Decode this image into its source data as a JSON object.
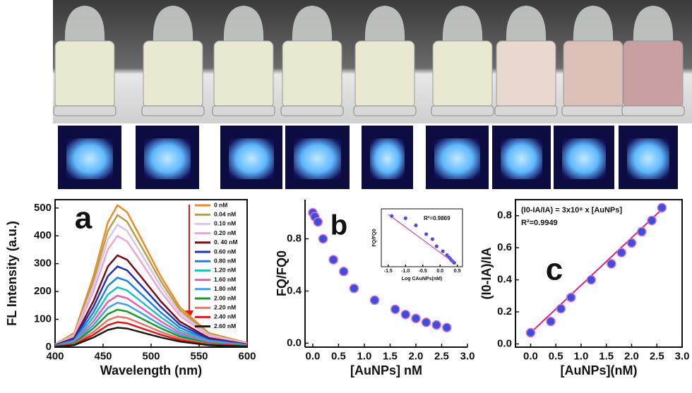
{
  "chart_data": [
    {
      "type": "line",
      "panel_label": "a",
      "y_label": "FL Intensity (a.u.)",
      "x_label": "Wavelength (nm)",
      "frame": true,
      "legend": "upper right",
      "x": [
        400,
        420,
        440,
        455,
        465,
        475,
        490,
        510,
        530,
        560,
        600
      ],
      "xlim": [
        400,
        600
      ],
      "xticks": [
        400,
        450,
        500,
        550,
        600
      ],
      "ylim": [
        0,
        530
      ],
      "yticks": [
        0,
        100,
        200,
        300,
        400,
        500
      ],
      "series": [
        {
          "name": "0 nM",
          "color": "#f08a24",
          "values": [
            10,
            51,
            255,
            449,
            510,
            485,
            388,
            255,
            143,
            51,
            15
          ]
        },
        {
          "name": "0.04 nM",
          "color": "#b5a04a",
          "values": [
            10,
            48,
            238,
            418,
            475,
            451,
            361,
            238,
            133,
            48,
            14
          ]
        },
        {
          "name": "0.10 nM",
          "color": "#d9c3ea",
          "values": [
            9,
            44,
            220,
            387,
            440,
            418,
            334,
            220,
            123,
            44,
            13
          ]
        },
        {
          "name": "0.20 nM",
          "color": "#f2a3cf",
          "values": [
            8,
            40,
            200,
            352,
            400,
            380,
            304,
            200,
            112,
            40,
            12
          ]
        },
        {
          "name": "0. 40 nM",
          "color": "#7a0a14",
          "values": [
            7,
            33,
            165,
            290,
            330,
            314,
            251,
            165,
            92,
            33,
            10
          ]
        },
        {
          "name": "0.60 nM",
          "color": "#1f2fbf",
          "values": [
            6,
            29,
            145,
            255,
            290,
            276,
            220,
            145,
            81,
            29,
            9
          ]
        },
        {
          "name": "0.80 nM",
          "color": "#1e7fe6",
          "values": [
            5,
            25,
            125,
            220,
            250,
            238,
            190,
            125,
            70,
            25,
            8
          ]
        },
        {
          "name": "1.20 nM",
          "color": "#1fbfbf",
          "values": [
            4,
            22,
            108,
            189,
            215,
            204,
            163,
            108,
            60,
            22,
            6
          ]
        },
        {
          "name": "1.60 nM",
          "color": "#e85fa8",
          "values": [
            4,
            19,
            93,
            163,
            185,
            176,
            141,
            93,
            52,
            19,
            6
          ]
        },
        {
          "name": "1.80 nM",
          "color": "#3fa0f0",
          "values": [
            3,
            16,
            80,
            141,
            160,
            152,
            122,
            80,
            45,
            16,
            5
          ]
        },
        {
          "name": "2.00 nM",
          "color": "#1a9a2a",
          "values": [
            3,
            14,
            68,
            119,
            135,
            128,
            103,
            68,
            38,
            14,
            4
          ]
        },
        {
          "name": "2.20 nM",
          "color": "#e8706a",
          "values": [
            2,
            11,
            55,
            97,
            110,
            105,
            84,
            55,
            31,
            11,
            3
          ]
        },
        {
          "name": "2.40 nM",
          "color": "#e01818",
          "values": [
            2,
            9,
            45,
            79,
            90,
            86,
            68,
            45,
            25,
            9,
            3
          ]
        },
        {
          "name": "2.60 nM",
          "color": "#1a1a1a",
          "values": [
            1,
            7,
            35,
            62,
            70,
            67,
            53,
            35,
            20,
            7,
            2
          ]
        }
      ]
    },
    {
      "type": "scatter",
      "panel_label": "b",
      "y_label": "FQ/FQ0",
      "x_label": "[AuNPs] nM",
      "frame": false,
      "color": "#3a4fe0",
      "x": [
        0,
        0.04,
        0.1,
        0.2,
        0.4,
        0.6,
        0.8,
        1.2,
        1.6,
        1.8,
        2.0,
        2.2,
        2.4,
        2.6
      ],
      "values": [
        1.0,
        0.97,
        0.93,
        0.8,
        0.64,
        0.55,
        0.42,
        0.33,
        0.26,
        0.22,
        0.19,
        0.16,
        0.14,
        0.12
      ],
      "xlim": [
        -0.15,
        3.0
      ],
      "xticks": [
        {
          "value": 0,
          "label": "0.0"
        },
        0.5,
        {
          "value": 1,
          "label": "1.0"
        },
        1.5,
        {
          "value": 2,
          "label": "2.0"
        },
        2.5,
        {
          "value": 3,
          "label": "3.0"
        }
      ],
      "ylim": [
        -0.03,
        1.1
      ],
      "yticks": [
        {
          "value": 0,
          "label": "0.0"
        },
        0.4,
        0.8
      ]
    },
    {
      "type": "scatter",
      "annotations": [
        "R²=0.9869"
      ],
      "y_label": "FQ/FQ0",
      "x_label": "Log CAuNPs(nM)",
      "frame": true,
      "color": "#3a4fe0",
      "x": [
        -1.4,
        -1.0,
        -0.7,
        -0.4,
        -0.22,
        -0.1,
        0.08,
        0.2,
        0.26,
        0.3,
        0.34,
        0.38,
        0.41
      ],
      "values": [
        0.97,
        0.93,
        0.8,
        0.64,
        0.55,
        0.42,
        0.33,
        0.26,
        0.22,
        0.19,
        0.16,
        0.14,
        0.12
      ],
      "fit": {
        "color": "#e0207a",
        "x": [
          -1.5,
          0.45
        ],
        "values": [
          1.0,
          0.1
        ]
      },
      "xlim": [
        -1.7,
        0.65
      ],
      "xticks": [
        -1.5,
        {
          "value": -1,
          "label": "-1.0"
        },
        -0.5,
        {
          "value": 0,
          "label": "0.0"
        },
        0.5
      ],
      "ylim": [
        0.05,
        1.1
      ]
    },
    {
      "type": "scatter",
      "panel_label": "c",
      "annotations": [
        "(I0-IA/IA) = 3x10⁸ x [AuNPs]",
        "R²=0.9949"
      ],
      "y_label": "(I0-IA)/IA",
      "x_label": "[AuNPs](nM)",
      "frame": true,
      "color": "#3a4fe0",
      "x": [
        0,
        0.4,
        0.6,
        0.8,
        1.2,
        1.6,
        1.8,
        2.0,
        2.2,
        2.4,
        2.6
      ],
      "values": [
        0.07,
        0.14,
        0.22,
        0.29,
        0.4,
        0.5,
        0.57,
        0.63,
        0.7,
        0.77,
        0.85
      ],
      "fit": {
        "color": "#e0207a",
        "x": [
          0,
          2.6
        ],
        "values": [
          0.07,
          0.84
        ]
      },
      "xlim": [
        -0.3,
        3.0
      ],
      "xticks": [
        {
          "value": 0,
          "label": "0.0"
        },
        0.5,
        {
          "value": 1,
          "label": "1.0"
        },
        1.5,
        {
          "value": 2,
          "label": "2.0"
        },
        2.5,
        {
          "value": 3,
          "label": "3.0"
        }
      ],
      "ylim": [
        -0.02,
        0.9
      ],
      "yticks": [
        {
          "value": 0,
          "label": "0.0"
        },
        0.2,
        0.4,
        0.6,
        0.8
      ]
    }
  ]
}
